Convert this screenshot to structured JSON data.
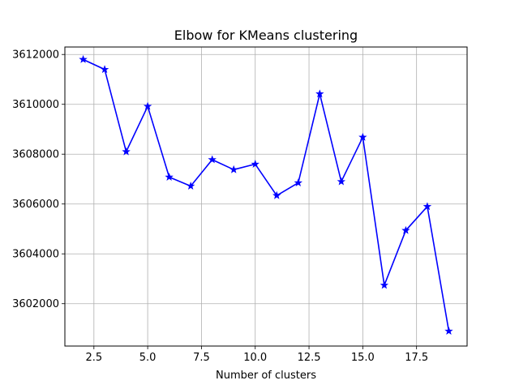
{
  "chart_data": {
    "type": "line",
    "title": "Elbow for KMeans clustering",
    "xlabel": "Number of clusters",
    "ylabel": "",
    "xlim": [
      1.15,
      19.85
    ],
    "ylim": [
      3600300,
      3612300
    ],
    "xticks": [
      2.5,
      5.0,
      7.5,
      10.0,
      12.5,
      15.0,
      17.5
    ],
    "xtick_labels": [
      "2.5",
      "5.0",
      "7.5",
      "10.0",
      "12.5",
      "15.0",
      "17.5"
    ],
    "yticks": [
      3602000,
      3604000,
      3606000,
      3608000,
      3610000,
      3612000
    ],
    "ytick_labels": [
      "3602000",
      "3604000",
      "3606000",
      "3608000",
      "3610000",
      "3612000"
    ],
    "grid": true,
    "marker": "star",
    "color": "#0000ff",
    "x": [
      2,
      3,
      4,
      5,
      6,
      7,
      8,
      9,
      10,
      11,
      12,
      13,
      14,
      15,
      16,
      17,
      18,
      19
    ],
    "series": [
      {
        "values": [
          3611800,
          3611400,
          3608100,
          3609920,
          3607080,
          3606720,
          3607780,
          3607380,
          3607600,
          3606340,
          3606850,
          3610420,
          3606900,
          3608680,
          3602740,
          3604940,
          3605900,
          3600900
        ]
      }
    ]
  }
}
